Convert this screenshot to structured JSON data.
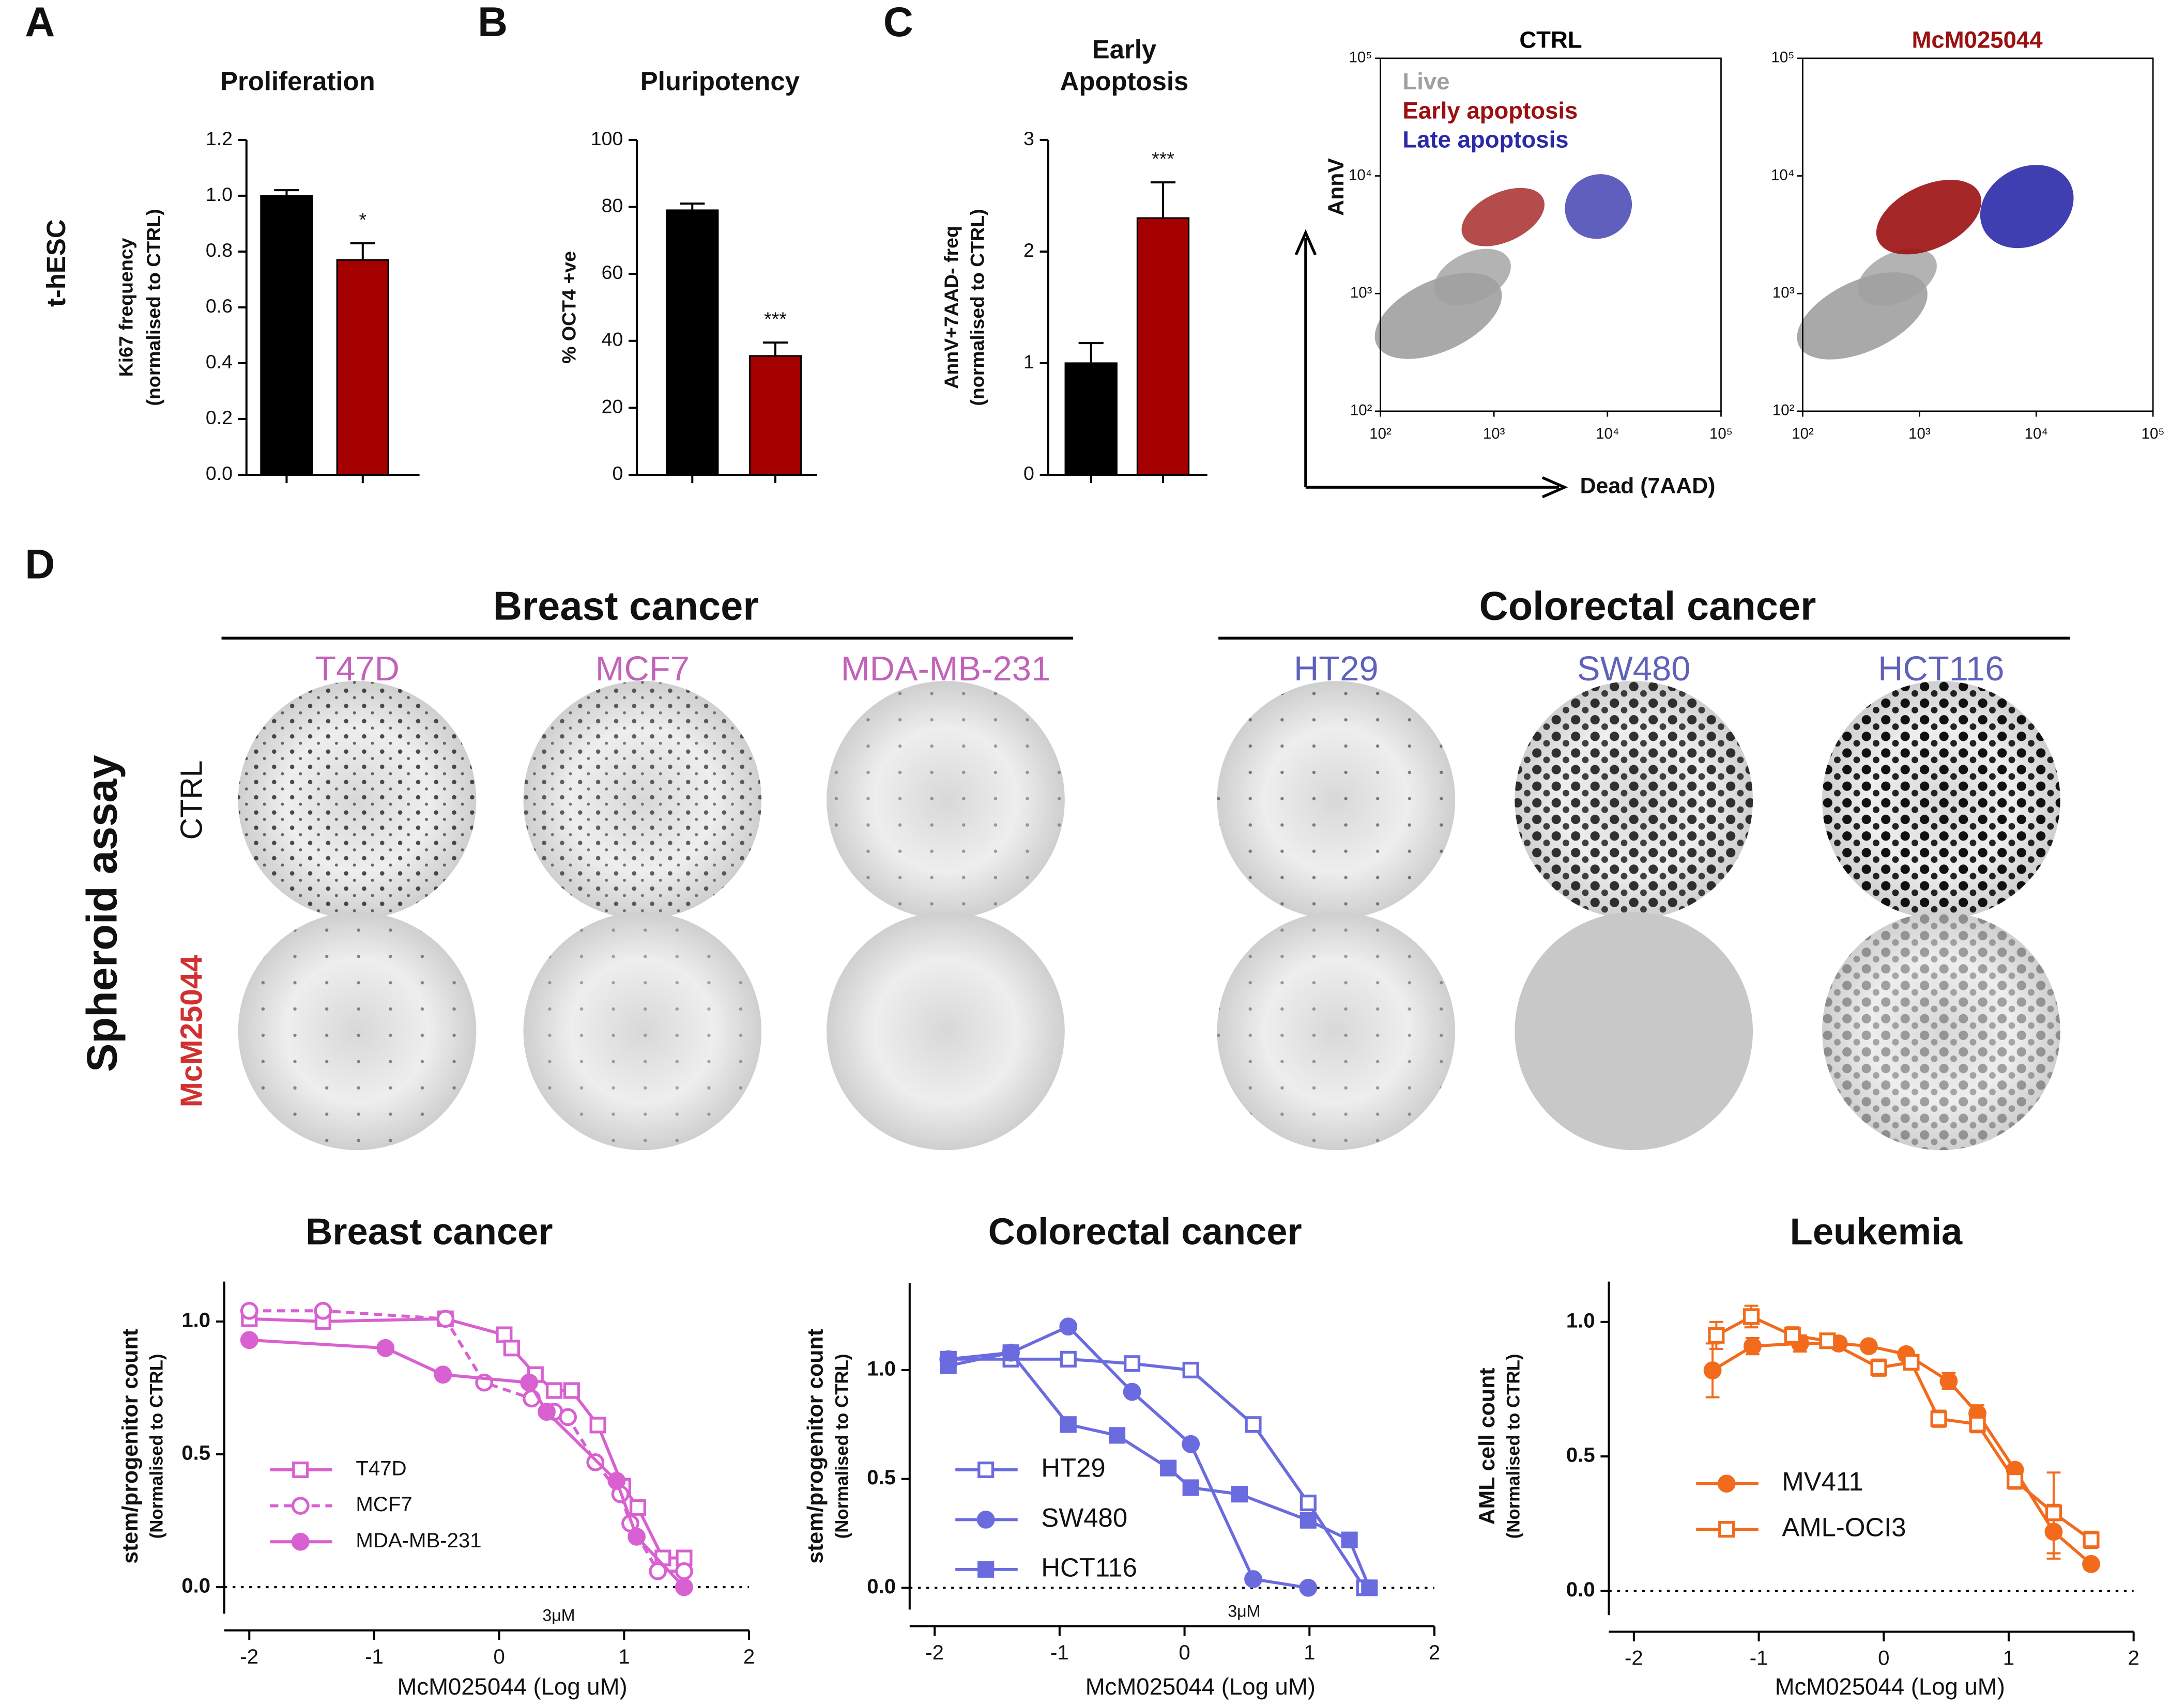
{
  "panels": [
    "A",
    "B",
    "C",
    "D"
  ],
  "row_label": "t-hESC",
  "chart_data": [
    {
      "type": "bar",
      "title": [
        "Proliferation"
      ],
      "ylabel": [
        "Ki67 frequency",
        "(normalised to CTRL)"
      ],
      "values": [
        1.0,
        0.77
      ],
      "errors": [
        0.02,
        0.06
      ],
      "colors": [
        "#000000",
        "#a50000"
      ],
      "annotations": [
        null,
        "*"
      ],
      "ylim": [
        0,
        1.2
      ],
      "yticks": [
        {
          "value": 0,
          "label": "0.0"
        },
        0.2,
        0.4,
        0.6,
        0.8,
        {
          "value": 1,
          "label": "1.0"
        },
        1.2
      ]
    },
    {
      "type": "bar",
      "title": [
        "Pluripotency"
      ],
      "ylabel": [
        "% OCT4 +ve"
      ],
      "values": [
        79,
        35.5
      ],
      "errors": [
        2,
        4
      ],
      "colors": [
        "#000000",
        "#a50000"
      ],
      "annotations": [
        null,
        "***"
      ],
      "ylim": [
        0,
        100
      ],
      "yticks": [
        0,
        20,
        40,
        60,
        80,
        100
      ]
    },
    {
      "type": "bar",
      "title": [
        "Early",
        "Apoptosis"
      ],
      "ylabel": [
        "AnnV+7AAD- freq",
        "(normalised to CTRL)"
      ],
      "values": [
        1.0,
        2.3
      ],
      "errors": [
        0.18,
        0.32
      ],
      "colors": [
        "#000000",
        "#a50000"
      ],
      "annotations": [
        null,
        "***"
      ],
      "ylim": [
        0,
        3
      ],
      "yticks": [
        0,
        1,
        2,
        3
      ]
    },
    {
      "type": "flow",
      "title": "CTRL",
      "title_color": "#000000",
      "xlabel": "Dead (7AAD)",
      "ylabel": "AnnV",
      "log": true,
      "xlim": [
        100,
        100000
      ],
      "ylim": [
        100,
        100000
      ],
      "xticks": [
        {
          "value": 100,
          "label": "10²"
        },
        {
          "value": 1000,
          "label": "10³"
        },
        {
          "value": 10000,
          "label": "10⁴"
        },
        {
          "value": 100000,
          "label": "10⁵"
        }
      ],
      "yticks": [
        {
          "value": 100,
          "label": "10²"
        },
        {
          "value": 1000,
          "label": "10³"
        },
        {
          "value": 10000,
          "label": "10⁴"
        },
        {
          "value": 100000,
          "label": "10⁵"
        }
      ],
      "legend": [
        {
          "name": "Live",
          "color": "#a0a0a0"
        },
        {
          "name": "Early apoptosis",
          "color": "#9b1010"
        },
        {
          "name": "Late apoptosis",
          "color": "#2a2aa8"
        }
      ]
    },
    {
      "type": "flow",
      "title": "McM025044",
      "title_color": "#9b1010",
      "log": true,
      "xlim": [
        100,
        100000
      ],
      "ylim": [
        100,
        100000
      ],
      "xticks": [
        {
          "value": 100,
          "label": "10²"
        },
        {
          "value": 1000,
          "label": "10³"
        },
        {
          "value": 10000,
          "label": "10⁴"
        },
        {
          "value": 100000,
          "label": "10⁵"
        }
      ],
      "yticks": [
        {
          "value": 100,
          "label": "10²"
        },
        {
          "value": 1000,
          "label": "10³"
        },
        {
          "value": 10000,
          "label": "10⁴"
        },
        {
          "value": 100000,
          "label": "10⁵"
        }
      ]
    },
    {
      "type": "line",
      "title": "Breast cancer",
      "xlabel": "McM025044 (Log uM)",
      "ylabel": [
        "stem/progenitor count",
        "(Normalised to CTRL)"
      ],
      "xlim": [
        -2.2,
        2
      ],
      "ylim": [
        -0.1,
        1.15
      ],
      "xticks": [
        -2,
        -1,
        0,
        1,
        2
      ],
      "yticks": [
        {
          "value": 0,
          "label": "0.0"
        },
        0.5,
        {
          "value": 1,
          "label": "1.0"
        }
      ],
      "zero_line": true,
      "annotation": {
        "x": 0.477,
        "text": "3μM"
      },
      "series": [
        {
          "name": "T47D",
          "color": "#d860d0",
          "marker": "square",
          "filled": false,
          "dash": false,
          "x": [
            -2,
            -1.41,
            -0.43,
            0.04,
            0.1,
            0.29,
            0.44,
            0.58,
            0.79,
            0.99,
            1.11,
            1.31,
            1.48
          ],
          "values": [
            1.01,
            1.0,
            1.01,
            0.95,
            0.9,
            0.8,
            0.74,
            0.74,
            0.61,
            0.38,
            0.3,
            0.11,
            0.11
          ]
        },
        {
          "name": "MCF7",
          "color": "#d860d0",
          "marker": "circle",
          "filled": false,
          "dash": true,
          "x": [
            -2,
            -1.41,
            -0.43,
            -0.12,
            0.26,
            0.44,
            0.55,
            0.77,
            0.97,
            1.05,
            1.27,
            1.48
          ],
          "values": [
            1.04,
            1.04,
            1.01,
            0.77,
            0.71,
            0.66,
            0.64,
            0.47,
            0.35,
            0.24,
            0.06,
            0.06
          ]
        },
        {
          "name": "MDA-MB-231",
          "color": "#d860d0",
          "marker": "circle",
          "filled": true,
          "dash": false,
          "x": [
            -2,
            -0.91,
            -0.45,
            0.24,
            0.38,
            0.94,
            1.1,
            1.48
          ],
          "values": [
            0.93,
            0.9,
            0.8,
            0.77,
            0.66,
            0.4,
            0.19,
            0.0
          ]
        }
      ]
    },
    {
      "type": "line",
      "title": "Colorectal cancer",
      "xlabel": "McM025044 (Log uM)",
      "ylabel": [
        "stem/progenitor count",
        "(Normalised to CTRL)"
      ],
      "xlim": [
        -2.2,
        2
      ],
      "ylim": [
        -0.1,
        1.4
      ],
      "xticks": [
        -2,
        -1,
        0,
        1,
        2
      ],
      "yticks": [
        {
          "value": 0,
          "label": "0.0"
        },
        0.5,
        {
          "value": 1,
          "label": "1.0"
        }
      ],
      "zero_line": true,
      "annotation": {
        "x": 0.477,
        "text": "3μM"
      },
      "series": [
        {
          "name": "HT29",
          "color": "#6b6be0",
          "marker": "square",
          "filled": false,
          "dash": false,
          "x": [
            -1.89,
            -1.39,
            -0.93,
            -0.42,
            0.05,
            0.55,
            0.99,
            1.44
          ],
          "values": [
            1.05,
            1.05,
            1.05,
            1.03,
            1.0,
            0.75,
            0.39,
            0.0
          ]
        },
        {
          "name": "SW480",
          "color": "#6b6be0",
          "marker": "circle",
          "filled": true,
          "dash": false,
          "x": [
            -1.89,
            -1.39,
            -0.93,
            -0.42,
            0.05,
            0.55,
            0.99
          ],
          "values": [
            1.05,
            1.08,
            1.2,
            0.9,
            0.66,
            0.04,
            0.0
          ]
        },
        {
          "name": "HCT116",
          "color": "#6b6be0",
          "marker": "square",
          "filled": true,
          "dash": false,
          "x": [
            -1.89,
            -1.39,
            -0.93,
            -0.54,
            -0.13,
            0.05,
            0.44,
            0.99,
            1.32,
            1.48
          ],
          "values": [
            1.02,
            1.08,
            0.75,
            0.7,
            0.55,
            0.46,
            0.43,
            0.31,
            0.22,
            0.0
          ]
        }
      ]
    },
    {
      "type": "line",
      "title": "Leukemia",
      "xlabel": "McM025044 (Log uM)",
      "ylabel": [
        "AML cell count",
        "(Normalised to CTRL)"
      ],
      "xlim": [
        -2.2,
        2
      ],
      "ylim": [
        -0.09,
        1.15
      ],
      "xticks": [
        -2,
        -1,
        0,
        1,
        2
      ],
      "yticks": [
        {
          "value": 0,
          "label": "0.0"
        },
        0.5,
        {
          "value": 1,
          "label": "1.0"
        }
      ],
      "zero_line": true,
      "series": [
        {
          "name": "MV411",
          "color": "#f26b1d",
          "marker": "circle",
          "filled": true,
          "dash": false,
          "x": [
            -1.37,
            -1.05,
            -0.67,
            -0.36,
            -0.12,
            0.18,
            0.52,
            0.75,
            1.05,
            1.36,
            1.66
          ],
          "values": [
            0.82,
            0.91,
            0.92,
            0.92,
            0.91,
            0.88,
            0.78,
            0.66,
            0.45,
            0.22,
            0.1
          ],
          "errors": [
            0.1,
            0.03,
            0.03,
            0.02,
            0.02,
            0.02,
            0.03,
            0.03,
            0.02,
            0.1,
            0.02
          ]
        },
        {
          "name": "AML-OCI3",
          "color": "#f26b1d",
          "marker": "square",
          "filled": false,
          "dash": false,
          "x": [
            -1.34,
            -1.06,
            -0.73,
            -0.45,
            -0.04,
            0.22,
            0.44,
            0.75,
            1.05,
            1.36,
            1.66
          ],
          "values": [
            0.95,
            1.02,
            0.95,
            0.93,
            0.83,
            0.85,
            0.64,
            0.62,
            0.41,
            0.29,
            0.19
          ],
          "errors": [
            0.05,
            0.04,
            0.03,
            0.02,
            0.03,
            0.02,
            0.03,
            0.03,
            0.03,
            0.15,
            0.03
          ]
        }
      ]
    }
  ],
  "spheroid": {
    "title": "Spheroid assay",
    "rows": [
      "CTRL",
      "McM25044"
    ],
    "groups": [
      {
        "name": "Breast cancer",
        "color": "#c262b8",
        "lines": [
          "T47D",
          "MCF7",
          "MDA-MB-231"
        ]
      },
      {
        "name": "Colorectal cancer",
        "color": "#5f62b8",
        "lines": [
          "HT29",
          "SW480",
          "HCT116"
        ]
      }
    ]
  }
}
